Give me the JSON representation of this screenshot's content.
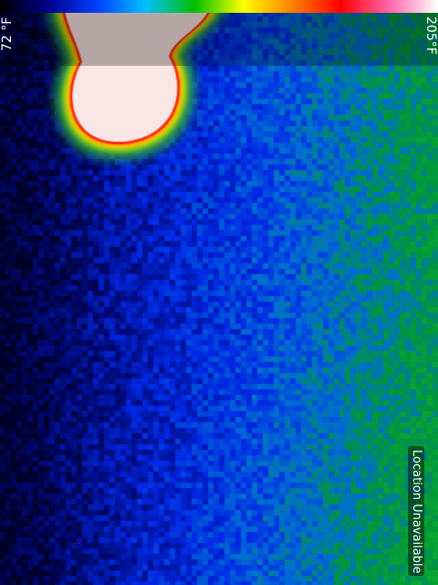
{
  "thermal_camera": {
    "min_temp_label": "72 °F",
    "max_temp_label": "205°F",
    "location_status": "Location Unavailable",
    "palette_colors": [
      "#000000",
      "#00008b",
      "#0040ff",
      "#00c0ff",
      "#00c000",
      "#ffff00",
      "#ff8000",
      "#ff0000",
      "#ff66aa",
      "#ffffff"
    ],
    "hotspot_color": "#fbe6e6",
    "hotspot_edge_color": "#ff2a12"
  }
}
